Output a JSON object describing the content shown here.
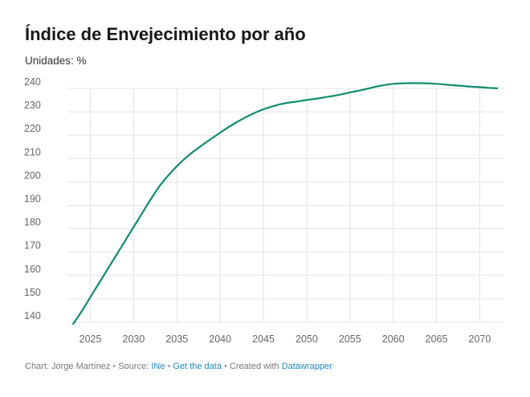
{
  "chart_data": {
    "type": "line",
    "title": "Índice de Envejecimiento por año",
    "subtitle": "Unidades: %",
    "xlabel": "",
    "ylabel": "",
    "xlim": [
      2023,
      2072
    ],
    "ylim": [
      136,
      241
    ],
    "x_ticks": [
      2025,
      2030,
      2035,
      2040,
      2045,
      2050,
      2055,
      2060,
      2065,
      2070
    ],
    "y_ticks": [
      140,
      150,
      160,
      170,
      180,
      190,
      200,
      210,
      220,
      230,
      240
    ],
    "grid": true,
    "legend": "none",
    "series": [
      {
        "color": "#0e8c6e",
        "x": [
          2023,
          2024,
          2025,
          2026,
          2027,
          2028,
          2029,
          2030,
          2031,
          2032,
          2033,
          2034,
          2035,
          2036,
          2037,
          2038,
          2039,
          2040,
          2041,
          2042,
          2043,
          2044,
          2045,
          2046,
          2047,
          2048,
          2049,
          2050,
          2051,
          2052,
          2053,
          2054,
          2055,
          2056,
          2057,
          2058,
          2059,
          2060,
          2061,
          2062,
          2063,
          2064,
          2065,
          2066,
          2067,
          2068,
          2069,
          2070,
          2071,
          2072
        ],
        "y": [
          136.5,
          142,
          148,
          154,
          160,
          166,
          172,
          178,
          184,
          190,
          195.5,
          200,
          204,
          207.5,
          210.5,
          213.2,
          215.8,
          218.3,
          220.8,
          223,
          225,
          226.8,
          228.3,
          229.5,
          230.5,
          231.2,
          231.7,
          232.3,
          232.8,
          233.4,
          234,
          234.7,
          235.5,
          236.3,
          237.1,
          238,
          238.7,
          239.2,
          239.4,
          239.5,
          239.5,
          239.4,
          239.2,
          238.9,
          238.6,
          238.3,
          238,
          237.8,
          237.5,
          237.3
        ]
      }
    ]
  },
  "footer": {
    "chart_label": "Chart: Jorge Martínez",
    "sep1": " • ",
    "source_label": "Source: ",
    "source_link": "INe",
    "sep2": " • ",
    "data_link": "Get the data",
    "sep3": " • ",
    "created_label": "Created with ",
    "created_link": "Datawrapper"
  }
}
